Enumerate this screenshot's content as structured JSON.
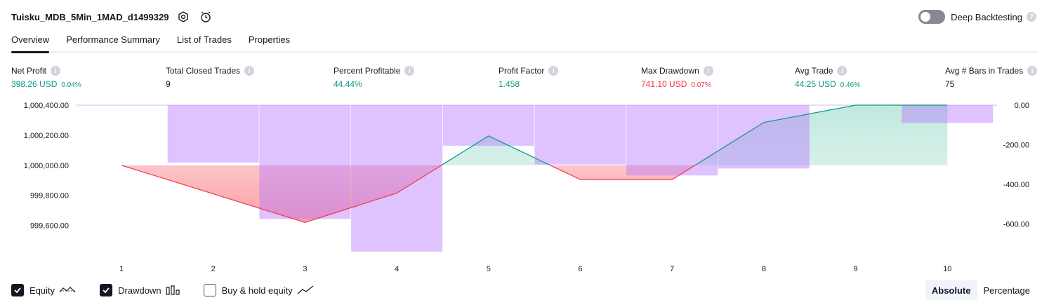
{
  "header": {
    "strategy_name": "Tuisku_MDB_5Min_1MAD_d1499329"
  },
  "deep_backtesting": {
    "label": "Deep Backtesting",
    "enabled": false
  },
  "tabs": [
    {
      "label": "Overview",
      "active": true
    },
    {
      "label": "Performance Summary",
      "active": false
    },
    {
      "label": "List of Trades",
      "active": false
    },
    {
      "label": "Properties",
      "active": false
    }
  ],
  "metrics": {
    "net_profit": {
      "label": "Net Profit",
      "value": "398.26 USD",
      "pct": "0.04%"
    },
    "total_closed_trades": {
      "label": "Total Closed Trades",
      "value": "9"
    },
    "percent_profitable": {
      "label": "Percent Profitable",
      "value": "44.44%"
    },
    "profit_factor": {
      "label": "Profit Factor",
      "value": "1.458"
    },
    "max_drawdown": {
      "label": "Max Drawdown",
      "value": "741.10 USD",
      "pct": "0.07%"
    },
    "avg_trade": {
      "label": "Avg Trade",
      "value": "44.25 USD",
      "pct": "0.46%"
    },
    "avg_bars": {
      "label": "Avg # Bars in Trades",
      "value": "75"
    }
  },
  "colors": {
    "profit": "#089981",
    "loss": "#f23645",
    "drawdown_bar": "#c59dfb",
    "equity_up_fill": "#d5efe9",
    "equity_down_fill": "#fcb9bd"
  },
  "chart_data": {
    "type": "line",
    "x": [
      1,
      2,
      3,
      4,
      5,
      6,
      7,
      8,
      9,
      10
    ],
    "x_tick_labels": [
      "1",
      "2",
      "3",
      "4",
      "5",
      "6",
      "7",
      "8",
      "9",
      "10"
    ],
    "series": [
      {
        "axis": "left",
        "kind": "equity_line",
        "values": [
          1000000.0,
          999810.0,
          999620.0,
          999815.0,
          1000195.0,
          999905.0,
          999905.0,
          1000285.0,
          1000400.0,
          1000400.0
        ]
      },
      {
        "axis": "right",
        "kind": "drawdown_bar",
        "values": [
          0,
          -290,
          -575,
          -740,
          -205,
          -300,
          -355,
          -320,
          0,
          -90
        ]
      }
    ],
    "left_axis": {
      "ticks": [
        1000400.0,
        1000200.0,
        1000000.0,
        999800.0,
        999600.0
      ],
      "tick_labels": [
        "1,000,400.00",
        "1,000,200.00",
        "1,000,000.00",
        "999,800.00",
        "999,600.00"
      ]
    },
    "right_axis": {
      "ticks": [
        0,
        -200,
        -400,
        -600
      ],
      "tick_labels": [
        "0.00",
        "-200.00",
        "-400.00",
        "-600.00"
      ]
    },
    "baseline": 1000000.0,
    "grid": false
  },
  "legend": [
    {
      "label": "Equity",
      "checked": true,
      "icon": "equity-line-icon"
    },
    {
      "label": "Drawdown",
      "checked": true,
      "icon": "drawdown-bars-icon"
    },
    {
      "label": "Buy & hold equity",
      "checked": false,
      "icon": "trend-line-icon"
    }
  ],
  "view_mode": {
    "options": [
      "Absolute",
      "Percentage"
    ],
    "selected": "Absolute"
  }
}
